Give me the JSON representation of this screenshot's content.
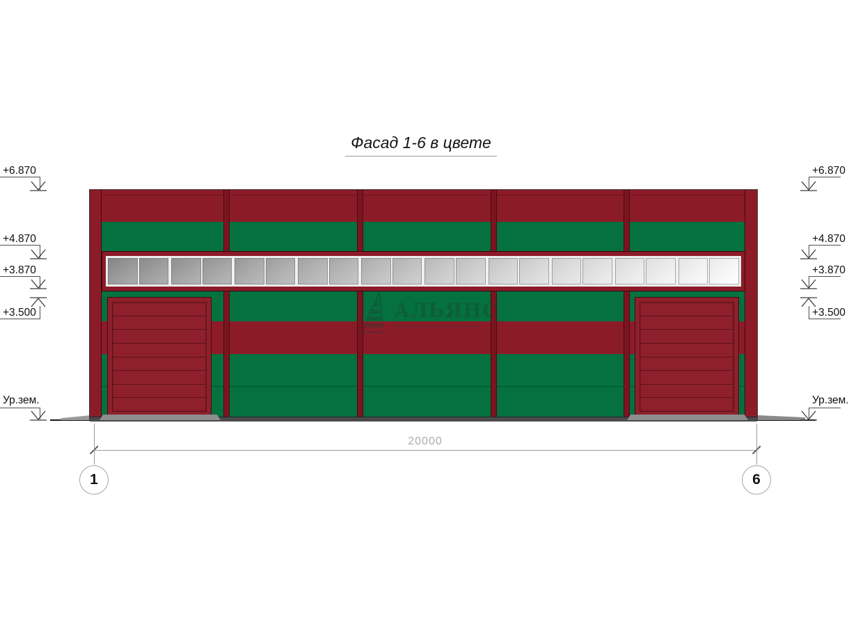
{
  "title": "Фасад 1-6 в цвете",
  "watermark": {
    "name": "АЛЬЯНС",
    "subtitle": "строительная компания"
  },
  "colors": {
    "red": "#8C1B28",
    "green": "#04713F",
    "door_red": "#8E202C",
    "mullion_red": "#7A1520",
    "window_frame_red": "#8C1B28",
    "glass_left_gray": "#8D8D8D",
    "glass_right_white": "#FDFDFD",
    "plinth_gray": "#4A4A4A",
    "ramp_gray": "#8E8E8E"
  },
  "elevation_markers": {
    "left": [
      {
        "label": "+6.870",
        "direction": "down"
      },
      {
        "label": "+4.870",
        "direction": "down"
      },
      {
        "label": "+3.870",
        "direction": "down"
      },
      {
        "label": "+3.500",
        "direction": "up"
      },
      {
        "label": "Ур.зем.",
        "direction": "down"
      }
    ],
    "right": [
      {
        "label": "+6.870",
        "direction": "down"
      },
      {
        "label": "+4.870",
        "direction": "down"
      },
      {
        "label": "+3.870",
        "direction": "down"
      },
      {
        "label": "+3.500",
        "direction": "up"
      },
      {
        "label": "Ур.зем.",
        "direction": "down"
      }
    ]
  },
  "dimension": {
    "value": "20000"
  },
  "axes": [
    {
      "label": "1"
    },
    {
      "label": "6"
    }
  ],
  "window_band": {
    "pane_count": 20,
    "group_size": 2
  },
  "doors": {
    "count": 2,
    "panel_count": 8
  },
  "facade": {
    "bay_count": 5
  }
}
